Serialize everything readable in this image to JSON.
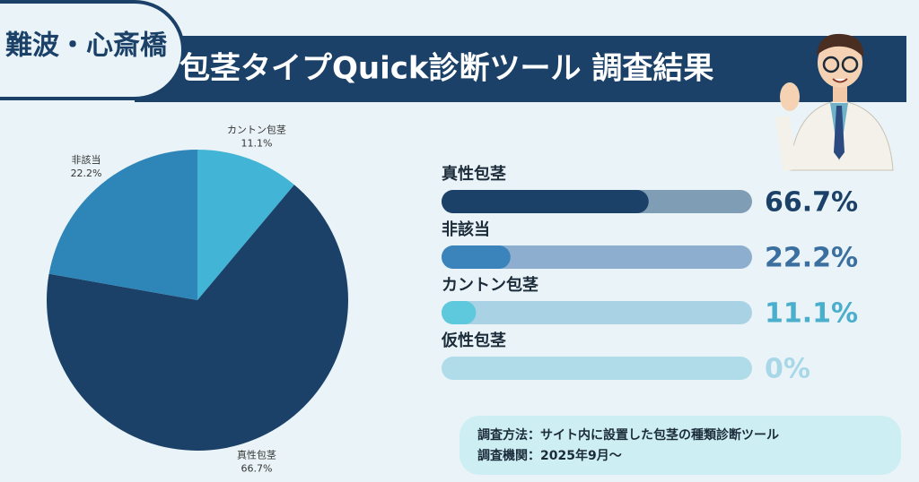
{
  "header": {
    "badge": "難波・心斎橋",
    "title": "包茎タイプQuick診断ツール 調査結果"
  },
  "chart_data": [
    {
      "type": "pie",
      "categories": [
        "カントン包茎",
        "真性包茎",
        "非該当"
      ],
      "values": [
        11.1,
        66.7,
        22.2
      ],
      "value_labels": [
        "11.1%",
        "66.7%",
        "22.2%"
      ],
      "colors": [
        "#42b4d6",
        "#1b4168",
        "#2e86b8"
      ]
    },
    {
      "type": "progress",
      "categories": [
        "真性包茎",
        "非該当",
        "カントン包茎",
        "仮性包茎"
      ],
      "values": [
        66.7,
        22.2,
        11.1,
        0
      ],
      "value_labels": [
        "66.7%",
        "22.2%",
        "11.1%",
        "0%"
      ],
      "colors": [
        "#1b4168",
        "#3a84bb",
        "#5ec8dc",
        "#9fd3e4"
      ],
      "track_colors": [
        "#7f9db5",
        "#8eaed0",
        "#a9d3e5",
        "#b0dcea"
      ],
      "label_colors": [
        "#1b4168",
        "#3a6fa0",
        "#4aaecd",
        "#a8d8e8"
      ],
      "xlim": [
        0,
        100
      ]
    }
  ],
  "footer": {
    "lines": [
      "調査方法：サイト内に設置した包茎の種類診断ツール",
      "調査機関：2025年9月〜"
    ]
  }
}
